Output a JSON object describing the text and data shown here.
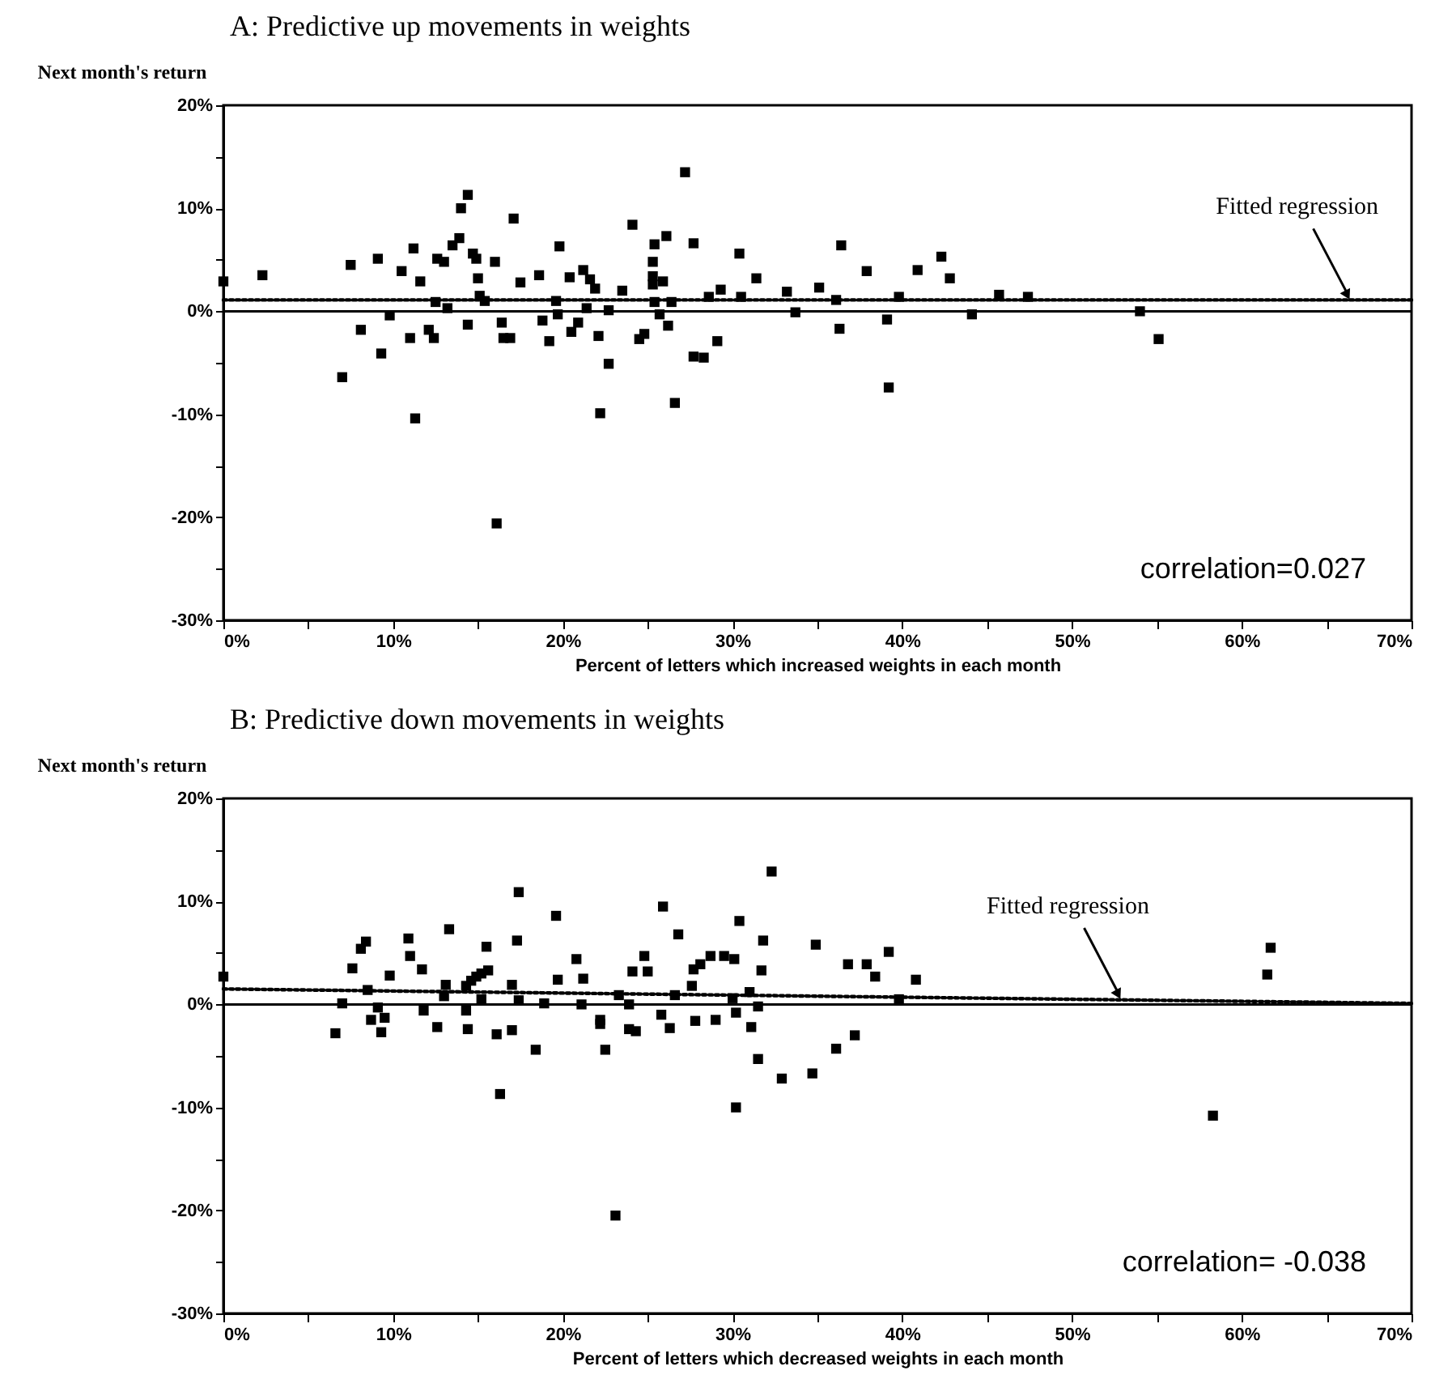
{
  "chart_data": [
    {
      "type": "scatter",
      "title": "A: Predictive up movements in weights",
      "ylabel": "Next month's return",
      "xlabel": "Percent of letters which increased weights in each month",
      "xlim": [
        0,
        70
      ],
      "ylim": [
        -30,
        20
      ],
      "xticks": [
        {
          "value": 0,
          "label": "0%"
        },
        {
          "value": 5,
          "label": null
        },
        {
          "value": 10,
          "label": "10%"
        },
        {
          "value": 15,
          "label": null
        },
        {
          "value": 20,
          "label": "20%"
        },
        {
          "value": 25,
          "label": null
        },
        {
          "value": 30,
          "label": "30%"
        },
        {
          "value": 35,
          "label": null
        },
        {
          "value": 40,
          "label": "40%"
        },
        {
          "value": 45,
          "label": null
        },
        {
          "value": 50,
          "label": "50%"
        },
        {
          "value": 55,
          "label": null
        },
        {
          "value": 60,
          "label": "60%"
        },
        {
          "value": 65,
          "label": null
        },
        {
          "value": 70,
          "label": "70%"
        }
      ],
      "yticks": [
        {
          "value": -30,
          "label": "-30%"
        },
        {
          "value": -25,
          "label": null
        },
        {
          "value": -20,
          "label": "-20%"
        },
        {
          "value": -15,
          "label": null
        },
        {
          "value": -10,
          "label": "-10%"
        },
        {
          "value": -5,
          "label": null
        },
        {
          "value": 0,
          "label": "0%"
        },
        {
          "value": 5,
          "label": null
        },
        {
          "value": 10,
          "label": "10%"
        },
        {
          "value": 15,
          "label": null
        },
        {
          "value": 20,
          "label": "20%"
        }
      ],
      "series": [
        {
          "type": "scatter",
          "marker": "square",
          "color": "#000000",
          "x": [
            0,
            2.3,
            7.0,
            7.5,
            8.1,
            9.1,
            9.3,
            9.8,
            10.5,
            11.0,
            11.2,
            11.3,
            11.6,
            12.1,
            12.4,
            12.6,
            12.5,
            13.0,
            13.2,
            13.5,
            13.9,
            14.0,
            14.4,
            14.4,
            14.7,
            14.9,
            15.0,
            15.1,
            15.4,
            16.0,
            16.1,
            16.4,
            16.5,
            16.9,
            17.1,
            17.5,
            18.6,
            18.8,
            19.2,
            19.6,
            19.7,
            19.8,
            20.4,
            20.5,
            20.9,
            21.2,
            21.4,
            21.6,
            21.9,
            22.1,
            22.2,
            22.7,
            22.7,
            23.5,
            24.1,
            24.5,
            24.8,
            25.3,
            25.3,
            25.3,
            25.4,
            25.4,
            25.9,
            26.1,
            26.2,
            25.7,
            26.4,
            26.6,
            27.2,
            27.7,
            27.7,
            28.3,
            28.6,
            29.1,
            29.3,
            30.4,
            30.5,
            31.4,
            33.2,
            33.7,
            35.1,
            36.1,
            36.3,
            36.4,
            37.9,
            39.1,
            39.2,
            39.8,
            40.9,
            42.3,
            42.8,
            44.1,
            45.7,
            47.4,
            54.0,
            55.1
          ],
          "values": [
            2.9,
            3.5,
            -6.4,
            4.5,
            -1.8,
            5.1,
            -4.1,
            -0.4,
            3.9,
            -2.6,
            6.1,
            -10.4,
            2.9,
            -1.8,
            -2.6,
            5.1,
            0.9,
            4.8,
            0.3,
            6.4,
            7.1,
            10.0,
            11.3,
            -1.3,
            5.6,
            5.1,
            3.2,
            1.5,
            1.0,
            4.8,
            -20.6,
            -1.1,
            -2.6,
            -2.6,
            9.0,
            2.8,
            3.5,
            -0.9,
            -2.9,
            1.0,
            -0.3,
            6.3,
            3.3,
            -2.0,
            -1.1,
            4.0,
            0.3,
            3.1,
            2.2,
            -2.4,
            -9.9,
            0.1,
            -5.1,
            2.0,
            8.4,
            -2.7,
            -2.2,
            4.8,
            3.4,
            2.6,
            6.5,
            0.9,
            2.9,
            7.3,
            -1.4,
            -0.3,
            0.9,
            -8.9,
            13.5,
            6.6,
            -4.4,
            -4.5,
            1.4,
            -2.9,
            2.1,
            5.6,
            1.4,
            3.2,
            1.9,
            -0.1,
            2.3,
            1.1,
            -1.7,
            6.4,
            3.9,
            -0.8,
            -7.4,
            1.4,
            4.0,
            5.3,
            3.2,
            -0.3,
            1.6,
            1.4,
            0.0,
            -2.7
          ]
        },
        {
          "type": "line",
          "color": "#000000",
          "line_style": "dotted",
          "x": [
            0,
            70
          ],
          "values": [
            1.1,
            1.1
          ]
        }
      ],
      "ref_lines": [
        {
          "axis": "y",
          "value": 0,
          "color": "#000000",
          "line_style": "solid"
        }
      ],
      "annotations": [
        "correlation=0.027",
        {
          "text": "Fitted regression",
          "x": 66.5,
          "y": 1.1
        }
      ]
    },
    {
      "type": "scatter",
      "title": "B: Predictive down movements in weights",
      "ylabel": "Next month's return",
      "xlabel": "Percent of letters which decreased weights in each month",
      "xlim": [
        0,
        70
      ],
      "ylim": [
        -30,
        20
      ],
      "xticks": [
        {
          "value": 0,
          "label": "0%"
        },
        {
          "value": 5,
          "label": null
        },
        {
          "value": 10,
          "label": "10%"
        },
        {
          "value": 15,
          "label": null
        },
        {
          "value": 20,
          "label": "20%"
        },
        {
          "value": 25,
          "label": null
        },
        {
          "value": 30,
          "label": "30%"
        },
        {
          "value": 35,
          "label": null
        },
        {
          "value": 40,
          "label": "40%"
        },
        {
          "value": 45,
          "label": null
        },
        {
          "value": 50,
          "label": "50%"
        },
        {
          "value": 55,
          "label": null
        },
        {
          "value": 60,
          "label": "60%"
        },
        {
          "value": 65,
          "label": null
        },
        {
          "value": 70,
          "label": "70%"
        }
      ],
      "yticks": [
        {
          "value": -30,
          "label": "-30%"
        },
        {
          "value": -25,
          "label": null
        },
        {
          "value": -20,
          "label": "-20%"
        },
        {
          "value": -15,
          "label": null
        },
        {
          "value": -10,
          "label": "-10%"
        },
        {
          "value": -5,
          "label": null
        },
        {
          "value": 0,
          "label": "0%"
        },
        {
          "value": 5,
          "label": null
        },
        {
          "value": 10,
          "label": "10%"
        },
        {
          "value": 15,
          "label": null
        },
        {
          "value": 20,
          "label": "20%"
        }
      ],
      "series": [
        {
          "type": "scatter",
          "marker": "square",
          "color": "#000000",
          "x": [
            0,
            6.6,
            7.0,
            7.6,
            8.1,
            8.4,
            8.5,
            8.7,
            9.1,
            9.3,
            9.5,
            9.8,
            10.9,
            11.0,
            11.7,
            11.8,
            12.6,
            13.0,
            13.1,
            13.3,
            14.3,
            14.3,
            14.4,
            14.6,
            14.9,
            15.2,
            15.5,
            15.6,
            15.2,
            16.1,
            16.3,
            17.0,
            17.0,
            17.3,
            17.4,
            17.4,
            18.4,
            18.9,
            19.6,
            19.7,
            20.8,
            21.2,
            21.1,
            22.2,
            22.2,
            22.5,
            23.1,
            23.3,
            23.9,
            23.9,
            24.3,
            24.1,
            24.8,
            25.0,
            25.8,
            25.9,
            26.3,
            26.8,
            26.6,
            27.6,
            27.7,
            27.8,
            28.1,
            28.7,
            29.0,
            29.5,
            30.1,
            30.0,
            30.2,
            30.2,
            30.4,
            31.0,
            31.1,
            31.5,
            31.5,
            31.7,
            31.8,
            32.3,
            32.9,
            34.7,
            34.9,
            36.1,
            36.8,
            37.2,
            37.9,
            38.4,
            39.2,
            39.8,
            40.8,
            58.3,
            61.5,
            61.7
          ],
          "values": [
            2.7,
            -2.8,
            0.1,
            3.5,
            5.4,
            6.1,
            1.4,
            -1.5,
            -0.3,
            -2.7,
            -1.3,
            2.8,
            6.4,
            4.7,
            3.4,
            -0.6,
            -2.2,
            0.8,
            1.9,
            7.3,
            1.8,
            -0.6,
            -2.4,
            2.3,
            2.7,
            3.0,
            5.6,
            3.3,
            0.5,
            -2.9,
            -8.7,
            1.9,
            -2.5,
            6.2,
            0.4,
            10.9,
            -4.4,
            0.1,
            8.6,
            2.4,
            4.4,
            2.5,
            0.0,
            -1.5,
            -1.9,
            -4.4,
            -20.5,
            0.9,
            0.0,
            -2.4,
            -2.6,
            3.2,
            4.7,
            3.2,
            -1.0,
            9.5,
            -2.3,
            6.8,
            0.9,
            1.8,
            3.4,
            -1.6,
            3.9,
            4.7,
            -1.5,
            4.7,
            4.4,
            0.6,
            -0.8,
            -10.0,
            8.1,
            1.2,
            -2.2,
            -0.2,
            -5.3,
            3.3,
            6.2,
            12.9,
            -7.2,
            -6.7,
            5.8,
            -4.3,
            3.9,
            -3.0,
            3.9,
            2.7,
            5.1,
            0.5,
            2.4,
            -10.8,
            2.9,
            5.5
          ]
        },
        {
          "type": "line",
          "color": "#000000",
          "line_style": "dotted",
          "x": [
            0,
            70
          ],
          "values": [
            1.5,
            0.1
          ]
        }
      ],
      "ref_lines": [
        {
          "axis": "y",
          "value": 0,
          "color": "#000000",
          "line_style": "solid"
        }
      ],
      "annotations": [
        "correlation= -0.038",
        {
          "text": "Fitted regression",
          "x": 53,
          "y": 0.5
        }
      ]
    }
  ]
}
